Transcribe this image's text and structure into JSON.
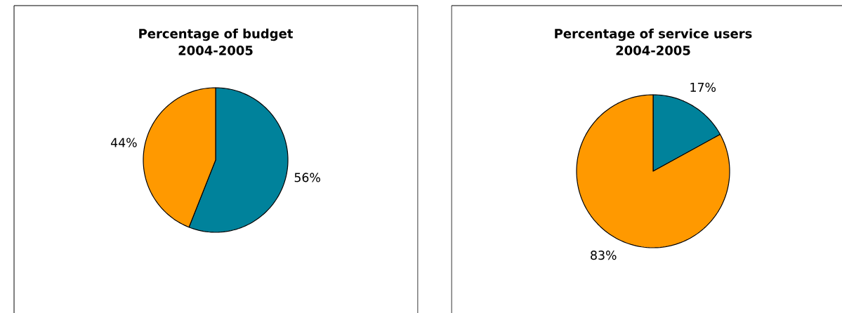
{
  "chart_data": [
    {
      "type": "pie",
      "title": "Percentage of budget",
      "subtitle": "2004-2005",
      "categories": [
        null,
        null
      ],
      "values": [
        56,
        44
      ],
      "colors": [
        "#00829b",
        "#ff9900"
      ],
      "value_labels": [
        "56%",
        "44%"
      ]
    },
    {
      "type": "pie",
      "title": "Percentage of service users",
      "subtitle": "2004-2005",
      "categories": [
        null,
        null
      ],
      "values": [
        17,
        83
      ],
      "colors": [
        "#00829b",
        "#ff9900"
      ],
      "value_labels": [
        "17%",
        "83%"
      ]
    }
  ]
}
